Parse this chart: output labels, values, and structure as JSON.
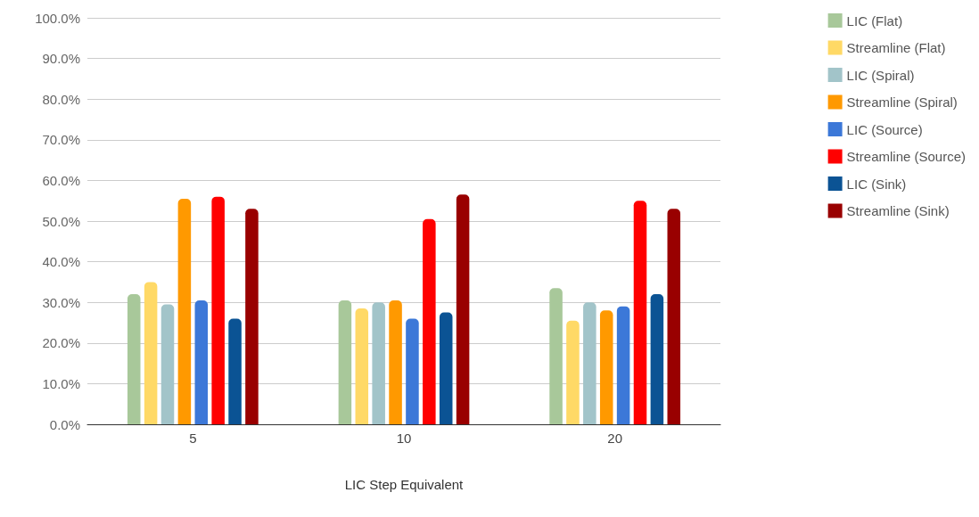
{
  "chart_data": {
    "type": "bar",
    "xlabel": "LIC Step Equivalent",
    "categories": [
      "5",
      "10",
      "20"
    ],
    "series": [
      {
        "name": "LIC (Flat)",
        "color": "#a8c89a",
        "values": [
          32,
          30.5,
          33.5
        ]
      },
      {
        "name": "Streamline (Flat)",
        "color": "#ffd966",
        "values": [
          35,
          28.5,
          25.5
        ]
      },
      {
        "name": "LIC (Spiral)",
        "color": "#a2c4c9",
        "values": [
          29.5,
          30,
          30
        ]
      },
      {
        "name": "Streamline (Spiral)",
        "color": "#ff9900",
        "values": [
          55.5,
          30.5,
          28
        ]
      },
      {
        "name": "LIC (Source)",
        "color": "#3c78d8",
        "values": [
          30.5,
          26,
          29
        ]
      },
      {
        "name": "Streamline (Source)",
        "color": "#ff0000",
        "values": [
          56,
          50.5,
          55
        ]
      },
      {
        "name": "LIC (Sink)",
        "color": "#0b5394",
        "values": [
          26,
          27.5,
          32
        ]
      },
      {
        "name": "Streamline (Sink)",
        "color": "#990000",
        "values": [
          53,
          56.5,
          53
        ]
      }
    ],
    "ylim": [
      0,
      100
    ],
    "yticks": [
      {
        "value": 0,
        "label": "0.0%"
      },
      {
        "value": 10,
        "label": "10.0%"
      },
      {
        "value": 20,
        "label": "20.0%"
      },
      {
        "value": 30,
        "label": "30.0%"
      },
      {
        "value": 40,
        "label": "40.0%"
      },
      {
        "value": 50,
        "label": "50.0%"
      },
      {
        "value": 60,
        "label": "60.0%"
      },
      {
        "value": 70,
        "label": "70.0%"
      },
      {
        "value": 80,
        "label": "80.0%"
      },
      {
        "value": 90,
        "label": "90.0%"
      },
      {
        "value": 100,
        "label": "100.0%"
      }
    ],
    "grid": "y",
    "legend": "right"
  }
}
